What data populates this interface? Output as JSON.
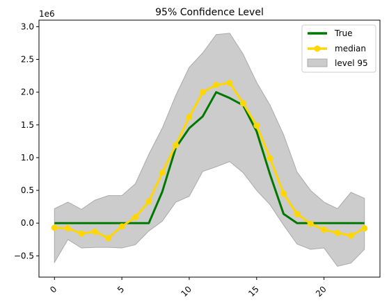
{
  "chart_data": {
    "type": "line",
    "title": "95% Confidence Level",
    "xlabel": "",
    "ylabel": "",
    "y_offset_label": "1e6",
    "x": [
      0,
      1,
      2,
      3,
      4,
      5,
      6,
      7,
      8,
      9,
      10,
      11,
      12,
      13,
      14,
      15,
      16,
      17,
      18,
      19,
      20,
      21,
      22,
      23
    ],
    "xlim": [
      -1.15,
      24.15
    ],
    "ylim": [
      -825000,
      3100000
    ],
    "x_ticks": [
      0,
      5,
      10,
      15,
      20
    ],
    "x_tick_labels": [
      "0",
      "5",
      "10",
      "15",
      "20"
    ],
    "y_ticks": [
      -500000,
      0,
      500000,
      1000000,
      1500000,
      2000000,
      2500000,
      3000000
    ],
    "y_tick_labels": [
      "−0.5",
      "0.0",
      "0.5",
      "1.0",
      "1.5",
      "2.0",
      "2.5",
      "3.0"
    ],
    "x_tick_rotation": 45,
    "grid": false,
    "legend_position": "top-right",
    "colors": {
      "true": "#007800",
      "median": "#ffd700",
      "band_fill": "#cccccc",
      "band_edge": "#aaaaaa"
    },
    "series": [
      {
        "name": "True",
        "kind": "line",
        "values": [
          0,
          0,
          0,
          0,
          0,
          0,
          0,
          0,
          480000,
          1150000,
          1450000,
          1630000,
          2000000,
          1910000,
          1800000,
          1400000,
          740000,
          140000,
          0,
          0,
          0,
          0,
          0,
          0
        ]
      },
      {
        "name": "median",
        "kind": "line-marker",
        "values": [
          -70000,
          -80000,
          -160000,
          -130000,
          -230000,
          -50000,
          90000,
          330000,
          770000,
          1190000,
          1620000,
          2000000,
          2110000,
          2140000,
          1830000,
          1490000,
          990000,
          450000,
          140000,
          -10000,
          -100000,
          -150000,
          -190000,
          -80000
        ]
      },
      {
        "name": "level 95",
        "kind": "band",
        "upper": [
          220000,
          320000,
          210000,
          350000,
          420000,
          420000,
          600000,
          1050000,
          1450000,
          1950000,
          2380000,
          2600000,
          2880000,
          2900000,
          2580000,
          2150000,
          1800000,
          1350000,
          780000,
          500000,
          320000,
          220000,
          470000,
          380000
        ],
        "lower": [
          -600000,
          -250000,
          -380000,
          -370000,
          -370000,
          -380000,
          -330000,
          -120000,
          30000,
          320000,
          410000,
          790000,
          860000,
          940000,
          770000,
          500000,
          280000,
          -30000,
          -320000,
          -400000,
          -380000,
          -660000,
          -610000,
          -400000
        ]
      }
    ]
  }
}
